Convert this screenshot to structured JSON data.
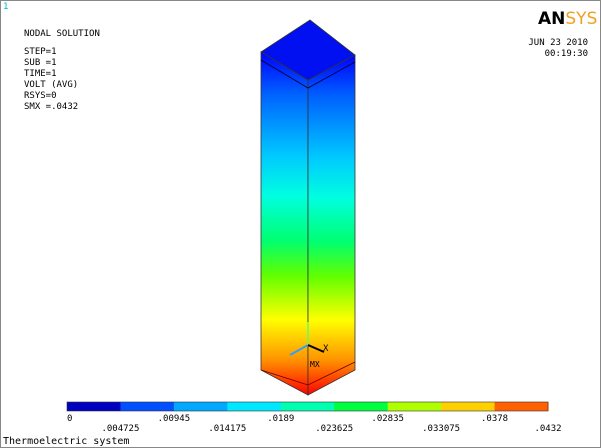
{
  "viewport_number": "1",
  "info": [
    "NODAL SOLUTION",
    "STEP=1",
    "SUB =1",
    "TIME=1",
    "VOLT     (AVG)",
    "RSYS=0",
    "SMX =.0432"
  ],
  "logo": {
    "an": "AN",
    "sys": "SYS"
  },
  "date": "JUN 23 2010",
  "time": "00:19:30",
  "triad": {
    "x": "X",
    "mx": "MX"
  },
  "legend": {
    "labels": [
      "0",
      ".004725",
      ".00945",
      ".014175",
      ".0189",
      ".023625",
      ".02835",
      ".033075",
      ".0378",
      ".0432"
    ]
  },
  "title": "Thermoelectric system"
}
